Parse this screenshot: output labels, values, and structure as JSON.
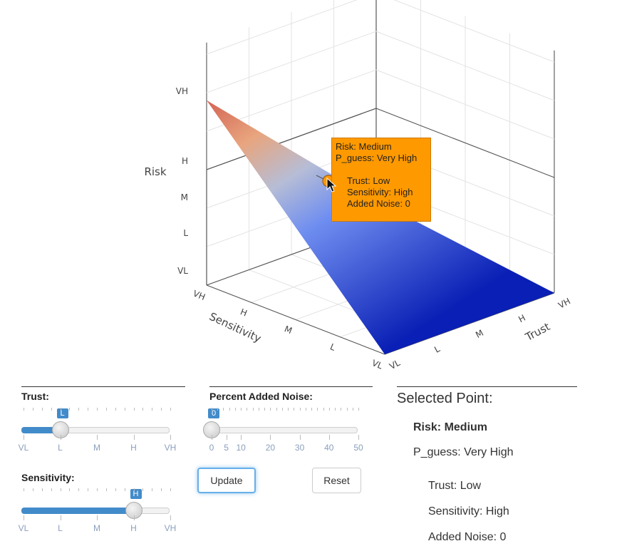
{
  "chart_data": {
    "type": "surface3d",
    "x_axis": {
      "title": "Trust",
      "ticks": [
        "VL",
        "L",
        "M",
        "H",
        "VH"
      ]
    },
    "y_axis": {
      "title": "Sensitivity",
      "ticks": [
        "VL",
        "L",
        "M",
        "H",
        "VH"
      ]
    },
    "z_axis": {
      "title": "Risk",
      "ticks": [
        "VL",
        "L",
        "M",
        "H",
        "VH"
      ]
    },
    "colorscale": [
      "#0a1fb5",
      "#7a9ae6",
      "#e8a57e",
      "#c0272d"
    ],
    "z_range": [
      1,
      5
    ],
    "corners": [
      {
        "trust": "VL",
        "sensitivity": "VL",
        "z": 1
      },
      {
        "trust": "VH",
        "sensitivity": "VL",
        "z": 1
      },
      {
        "trust": "VH",
        "sensitivity": "VH",
        "z": 1.6
      },
      {
        "trust": "VL",
        "sensitivity": "VH",
        "z": 5.8
      }
    ],
    "selected_point": {
      "trust": "L",
      "sensitivity": "H",
      "risk": "Medium"
    },
    "tooltip": {
      "risk": "Risk: Medium",
      "pguess": "P_guess: Very High",
      "trust": "Trust: Low",
      "sensitivity": "Sensitivity: High",
      "noise": "Added Noise: 0"
    }
  },
  "controls": {
    "trust": {
      "label": "Trust:",
      "value": "L",
      "fraction": 0.25,
      "ticks": [
        "VL",
        "L",
        "M",
        "H",
        "VH"
      ]
    },
    "sensitivity": {
      "label": "Sensitivity:",
      "value": "H",
      "fraction": 0.75,
      "ticks": [
        "VL",
        "L",
        "M",
        "H",
        "VH"
      ]
    },
    "noise": {
      "label": "Percent Added Noise:",
      "value": "0",
      "fraction": 0.0,
      "ticks": [
        "0",
        "5",
        "10",
        "20",
        "30",
        "40",
        "50"
      ]
    },
    "update_label": "Update",
    "reset_label": "Reset"
  },
  "selected": {
    "title": "Selected Point:",
    "risk": "Risk: Medium",
    "pguess": "P_guess: Very High",
    "trust": "Trust: Low",
    "sensitivity": "Sensitivity: High",
    "noise": "Added Noise: 0"
  }
}
